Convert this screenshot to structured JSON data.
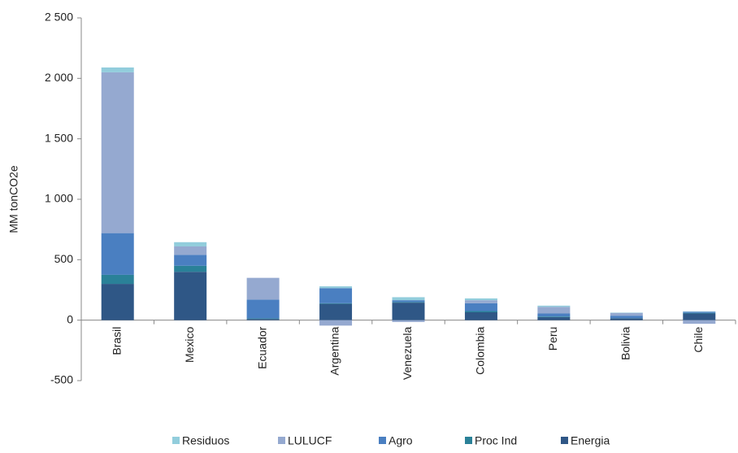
{
  "chart_data": {
    "type": "bar",
    "stacked": true,
    "y_label": "MM tonCO2e",
    "categories": [
      "Brasil",
      "Mexico",
      "Ecuador",
      "Argentina",
      "Venezuela",
      "Colombia",
      "Peru",
      "Bolivia",
      "Chile"
    ],
    "series": [
      {
        "name": "Residuos",
        "color": "#92cddc",
        "values": [
          40,
          35,
          0,
          15,
          25,
          15,
          10,
          3,
          3
        ]
      },
      {
        "name": "LULUCF",
        "color": "#95a9d0",
        "values": [
          1330,
          70,
          180,
          -45,
          -15,
          25,
          55,
          23,
          -30
        ]
      },
      {
        "name": "Agro",
        "color": "#4a7fc1",
        "values": [
          345,
          90,
          155,
          125,
          15,
          65,
          25,
          20,
          10
        ]
      },
      {
        "name": "Proc Ind",
        "color": "#2a8198",
        "values": [
          75,
          50,
          5,
          5,
          5,
          10,
          5,
          2,
          5
        ]
      },
      {
        "name": "Energia",
        "color": "#2f5786",
        "values": [
          300,
          400,
          10,
          135,
          145,
          65,
          25,
          15,
          55
        ]
      }
    ],
    "ylim": [
      -500,
      2500
    ],
    "yticks": [
      -500,
      0,
      500,
      {
        "value": 1000,
        "label": "1 000"
      },
      {
        "value": 1500,
        "label": "1 500"
      },
      {
        "value": 2000,
        "label": "2 000"
      },
      {
        "value": 2500,
        "label": "2 500"
      }
    ],
    "legend": "bottom"
  }
}
